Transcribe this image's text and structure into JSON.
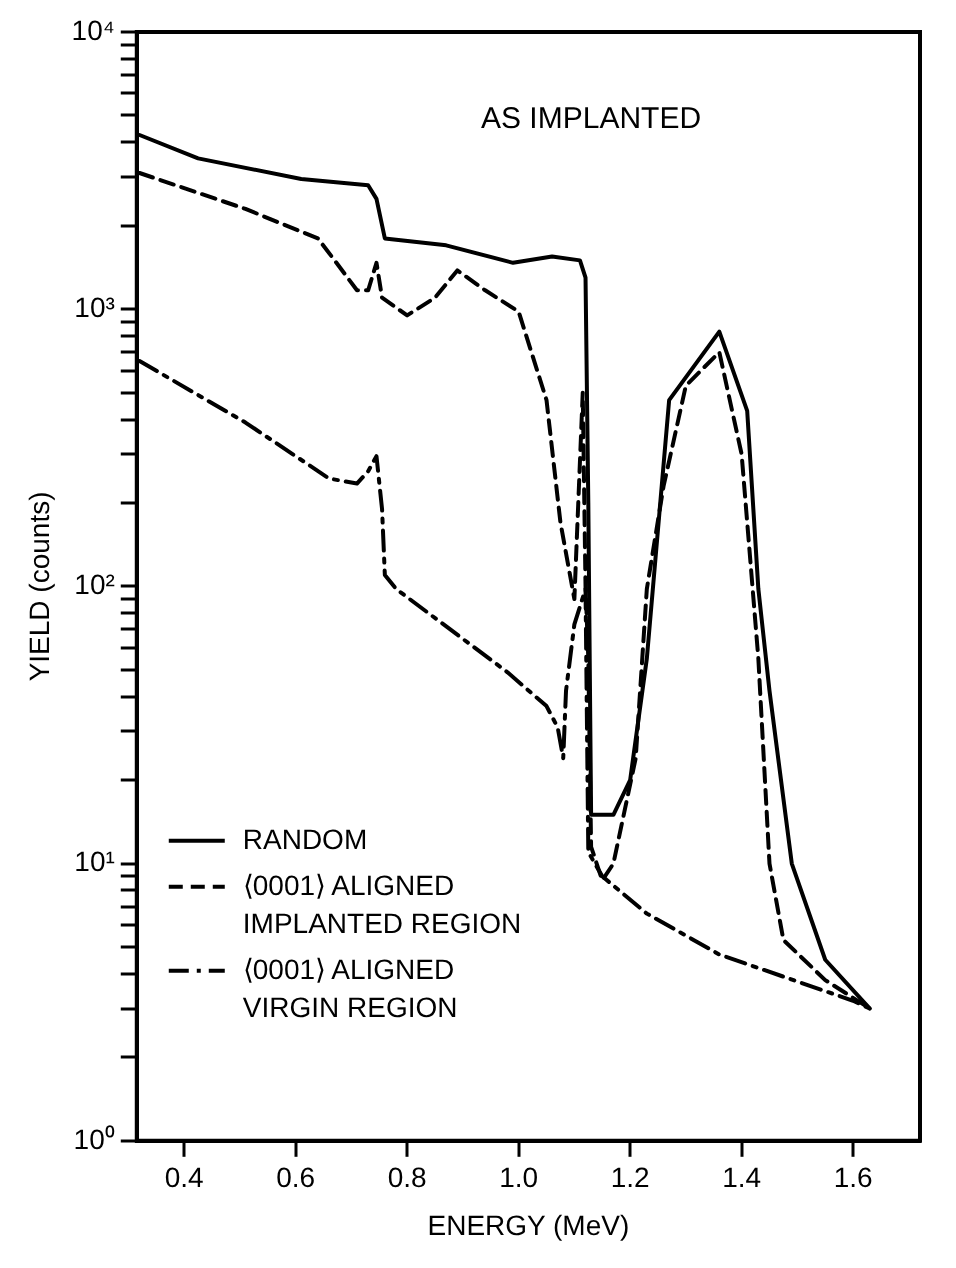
{
  "chart_data": {
    "type": "line",
    "title": "AS IMPLANTED",
    "xlabel": "ENERGY (MeV)",
    "ylabel": "YIELD (counts)",
    "log": "y",
    "grid": false,
    "legend": "bottom left",
    "marker": "none",
    "xlim": [
      0.315,
      1.72
    ],
    "xticks": [
      0.4,
      0.6,
      0.8,
      {
        "value": 1,
        "label": "1.0"
      },
      1.2,
      1.4,
      1.6
    ],
    "ylim": [
      1,
      10000
    ],
    "yticks": [
      {
        "value": 1,
        "label": "10⁰"
      },
      {
        "value": 2,
        "label": null
      },
      {
        "value": 3,
        "label": null
      },
      {
        "value": 4,
        "label": null
      },
      {
        "value": 5,
        "label": null
      },
      {
        "value": 6,
        "label": null
      },
      {
        "value": 7,
        "label": null
      },
      {
        "value": 8,
        "label": null
      },
      {
        "value": 9,
        "label": null
      },
      {
        "value": 10,
        "label": "10¹"
      },
      {
        "value": 20,
        "label": null
      },
      {
        "value": 30,
        "label": null
      },
      {
        "value": 40,
        "label": null
      },
      {
        "value": 50,
        "label": null
      },
      {
        "value": 60,
        "label": null
      },
      {
        "value": 70,
        "label": null
      },
      {
        "value": 80,
        "label": null
      },
      {
        "value": 90,
        "label": null
      },
      {
        "value": 100,
        "label": "10²"
      },
      {
        "value": 200,
        "label": null
      },
      {
        "value": 300,
        "label": null
      },
      {
        "value": 400,
        "label": null
      },
      {
        "value": 500,
        "label": null
      },
      {
        "value": 600,
        "label": null
      },
      {
        "value": 700,
        "label": null
      },
      {
        "value": 800,
        "label": null
      },
      {
        "value": 900,
        "label": null
      },
      {
        "value": 1000,
        "label": "10³"
      },
      {
        "value": 2000,
        "label": null
      },
      {
        "value": 3000,
        "label": null
      },
      {
        "value": 4000,
        "label": null
      },
      {
        "value": 5000,
        "label": null
      },
      {
        "value": 6000,
        "label": null
      },
      {
        "value": 7000,
        "label": null
      },
      {
        "value": 8000,
        "label": null
      },
      {
        "value": 9000,
        "label": null
      },
      {
        "value": 10000,
        "label": "10⁴"
      }
    ],
    "series": [
      {
        "name": "RANDOM",
        "color": "#000000",
        "line_style": "solid",
        "x": [
          0.32,
          0.425,
          0.61,
          0.73,
          0.745,
          0.76,
          0.87,
          0.99,
          1.06,
          1.11,
          1.12,
          1.125,
          1.13,
          1.17,
          1.2,
          1.23,
          1.27,
          1.36,
          1.41,
          1.43,
          1.45,
          1.49,
          1.55,
          1.63
        ],
        "values": [
          4250,
          3500,
          2950,
          2800,
          2500,
          1800,
          1700,
          1470,
          1550,
          1500,
          1300,
          200,
          15,
          15,
          20,
          55,
          470,
          830,
          430,
          98,
          42,
          10,
          4.5,
          3
        ]
      },
      {
        "name": "⟨0001⟩ ALIGNED IMPLANTED REGION",
        "color": "#000000",
        "line_style": "dashed",
        "x": [
          0.32,
          0.51,
          0.64,
          0.67,
          0.71,
          0.73,
          0.745,
          0.755,
          0.8,
          0.85,
          0.89,
          0.94,
          1.0,
          1.05,
          1.075,
          1.1,
          1.115,
          1.12,
          1.125,
          1.13,
          1.15,
          1.17,
          1.21,
          1.23,
          1.26,
          1.3,
          1.36,
          1.4,
          1.43,
          1.45,
          1.475,
          1.55,
          1.63
        ],
        "values": [
          3100,
          2300,
          1800,
          1500,
          1170,
          1170,
          1470,
          1100,
          950,
          1100,
          1380,
          1170,
          980,
          470,
          170,
          90,
          500,
          100,
          55,
          11.5,
          8.7,
          10,
          24,
          98,
          230,
          530,
          700,
          300,
          55,
          10,
          5.3,
          3.8,
          3
        ]
      },
      {
        "name": "⟨0001⟩ ALIGNED VIRGIN REGION",
        "color": "#000000",
        "line_style": "dashdot",
        "x": [
          0.32,
          0.51,
          0.66,
          0.71,
          0.73,
          0.745,
          0.755,
          0.76,
          0.78,
          0.98,
          1.05,
          1.07,
          1.08,
          1.085,
          1.1,
          1.12,
          1.125,
          1.15,
          1.23,
          1.36,
          1.6,
          1.63
        ],
        "values": [
          650,
          390,
          245,
          235,
          260,
          295,
          190,
          110,
          98,
          49,
          37,
          31,
          24,
          42,
          73,
          98,
          11,
          9,
          6.6,
          4.7,
          3.2,
          3
        ]
      }
    ]
  }
}
